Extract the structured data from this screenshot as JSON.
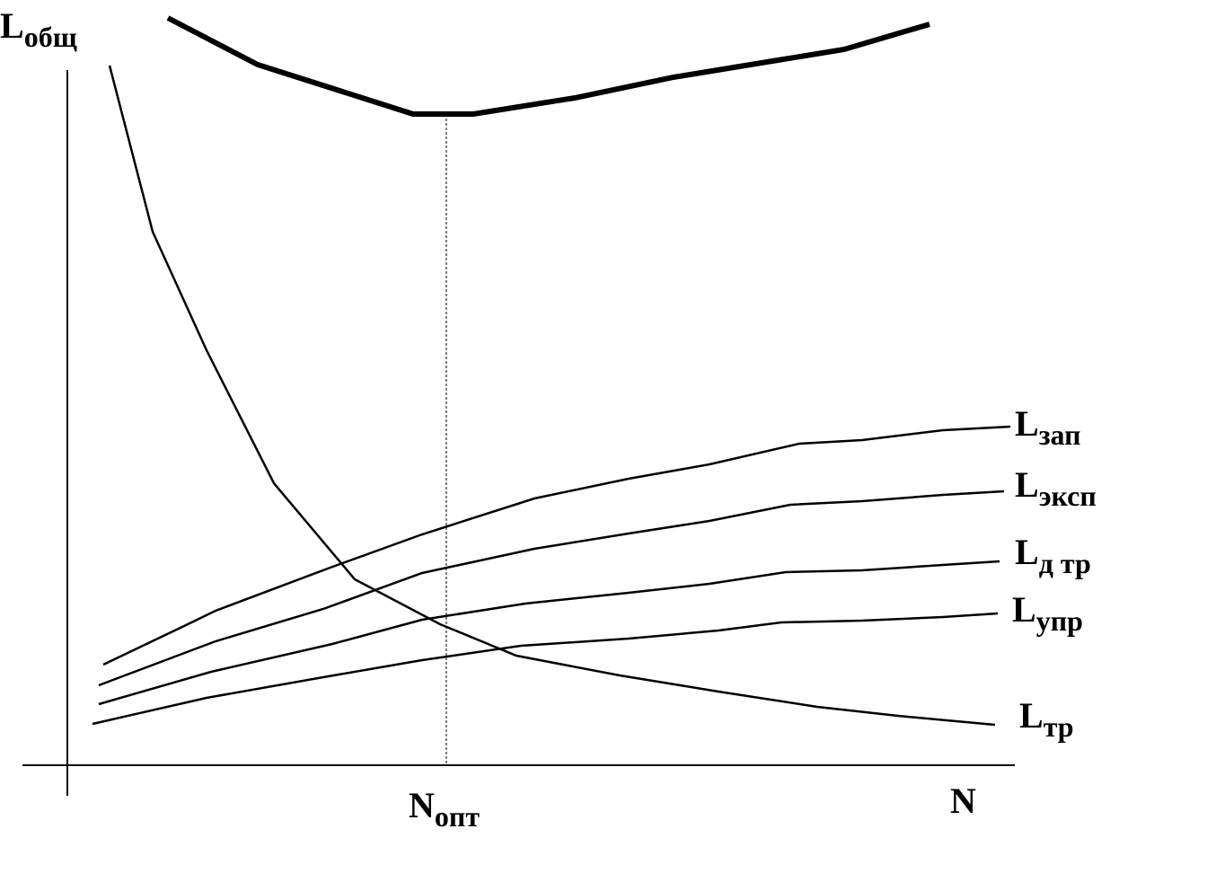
{
  "y_axis": {
    "main": "L",
    "sub": "общ"
  },
  "x_axis": {
    "main": "N"
  },
  "optimum": {
    "main": "N",
    "sub": "опт"
  },
  "curves": [
    {
      "main": "L",
      "sub": "зап"
    },
    {
      "main": "L",
      "sub": "эксп"
    },
    {
      "main": "L",
      "sub": "д тр"
    },
    {
      "main": "L",
      "sub": "упр"
    },
    {
      "main": "L",
      "sub": "тр"
    }
  ]
}
